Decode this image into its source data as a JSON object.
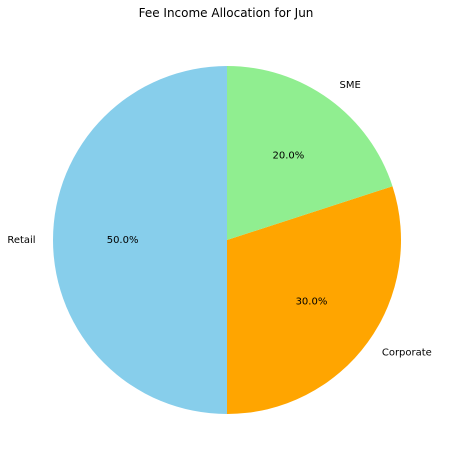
{
  "chart_data": {
    "type": "pie",
    "title": "Fee Income Allocation for Jun",
    "start_angle_deg": 90,
    "direction": "counterclockwise",
    "slices": [
      {
        "label": "Retail",
        "value": 50.0,
        "pct_label": "50.0%",
        "color": "#87CEEB"
      },
      {
        "label": "Corporate",
        "value": 30.0,
        "pct_label": "30.0%",
        "color": "#FFA500"
      },
      {
        "label": "SME",
        "value": 20.0,
        "pct_label": "20.0%",
        "color": "#90EE90"
      }
    ]
  }
}
